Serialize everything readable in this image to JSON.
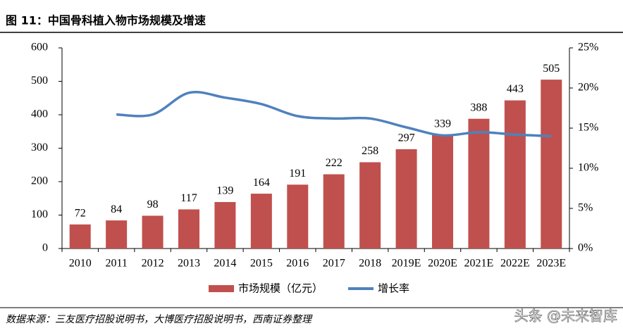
{
  "header": {
    "title": "图 11：中国骨科植入物市场规模及增速"
  },
  "chart_data": {
    "type": "bar-line",
    "categories": [
      "2010",
      "2011",
      "2012",
      "2013",
      "2014",
      "2015",
      "2016",
      "2017",
      "2018",
      "2019E",
      "2020E",
      "2021E",
      "2022E",
      "2023E"
    ],
    "series": [
      {
        "name": "市场规模（亿元）",
        "type": "bar",
        "color": "#c0504d",
        "values": [
          72,
          84,
          98,
          117,
          139,
          164,
          191,
          222,
          258,
          297,
          339,
          388,
          443,
          505
        ]
      },
      {
        "name": "增长率",
        "type": "line",
        "axis": "y2",
        "color": "#4f81bd",
        "values": [
          null,
          16.7,
          16.7,
          19.4,
          18.8,
          18.0,
          16.5,
          16.2,
          16.2,
          15.1,
          14.1,
          14.5,
          14.2,
          14.0
        ]
      }
    ],
    "ylim": [
      0,
      600
    ],
    "yticks": [
      0,
      100,
      200,
      300,
      400,
      500,
      600
    ],
    "y2lim": [
      0,
      25
    ],
    "y2ticks": [
      {
        "value": 0,
        "label": "0%"
      },
      {
        "value": 5,
        "label": "5%"
      },
      {
        "value": 10,
        "label": "10%"
      },
      {
        "value": 15,
        "label": "15%"
      },
      {
        "value": 20,
        "label": "20%"
      },
      {
        "value": 25,
        "label": "25%"
      }
    ],
    "legend": "bottom"
  },
  "footer": {
    "source": "数据来源：三友医疗招股说明书，大博医疗招股说明书，西南证券整理",
    "watermark": "头条 @未来智库"
  }
}
